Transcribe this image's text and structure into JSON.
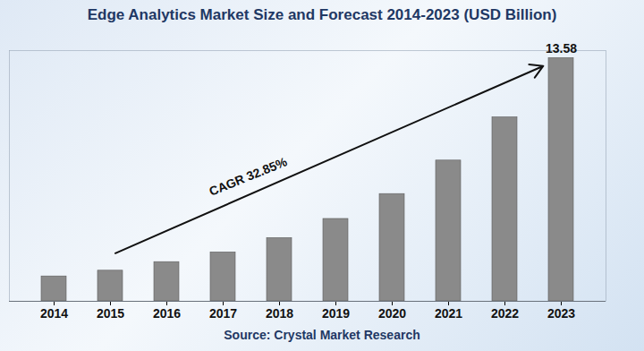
{
  "chart_data": {
    "type": "bar",
    "title": "Edge Analytics Market Size and Forecast 2014-2023 (USD Billion)",
    "source": "Source: Crystal Market Research",
    "categories": [
      "2014",
      "2015",
      "2016",
      "2017",
      "2018",
      "2019",
      "2020",
      "2021",
      "2022",
      "2023"
    ],
    "values": [
      1.39,
      1.71,
      2.19,
      2.73,
      3.53,
      4.6,
      5.99,
      7.86,
      10.27,
      13.58
    ],
    "value_labels": [
      null,
      null,
      null,
      null,
      null,
      null,
      null,
      null,
      null,
      "13.58"
    ],
    "color": "#8a8a8a",
    "ylim": [
      0,
      14
    ],
    "yticks": [],
    "grid": false,
    "tick_labels": "x",
    "annotations": [
      {
        "text": "CAGR 32.85%"
      }
    ]
  }
}
